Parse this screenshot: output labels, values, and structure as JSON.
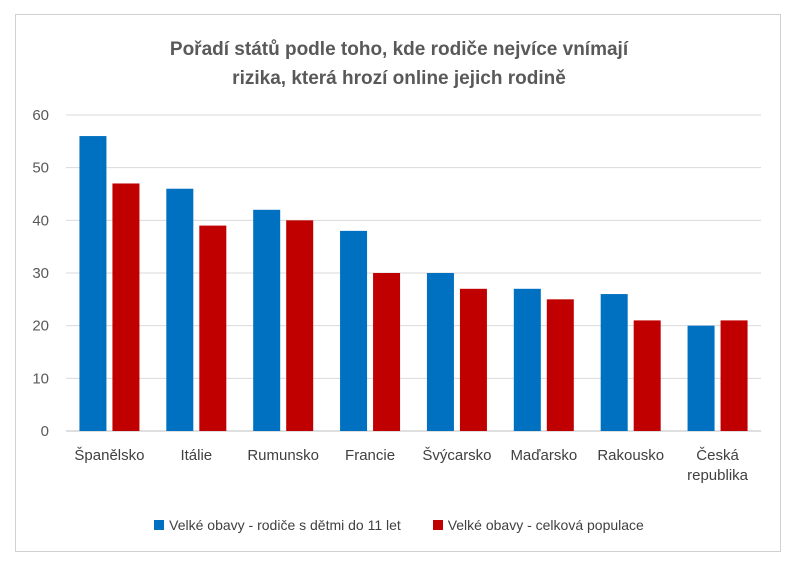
{
  "chart_data": {
    "type": "bar",
    "title_lines": [
      "Pořadí států podle toho, kde rodiče nejvíce vnímají",
      "rizika, která hrozí online jejich rodině"
    ],
    "categories": [
      [
        "Španělsko"
      ],
      [
        "Itálie"
      ],
      [
        "Rumunsko"
      ],
      [
        "Francie"
      ],
      [
        "Švýcarsko"
      ],
      [
        "Maďarsko"
      ],
      [
        "Rakousko"
      ],
      [
        "Česká",
        "republika"
      ]
    ],
    "series": [
      {
        "name": "Velké obavy - rodiče s dětmi do 11 let",
        "color": "#0070c0",
        "values": [
          56,
          46,
          42,
          38,
          30,
          27,
          26,
          20
        ]
      },
      {
        "name": "Velké obavy - celková populace",
        "color": "#c00000",
        "values": [
          47,
          39,
          40,
          30,
          27,
          25,
          21,
          21
        ]
      }
    ],
    "ylim": [
      0,
      60
    ],
    "yticks": [
      "0",
      "10",
      "20",
      "30",
      "40",
      "50",
      "60"
    ],
    "grid": true,
    "legend_position": "bottom"
  }
}
